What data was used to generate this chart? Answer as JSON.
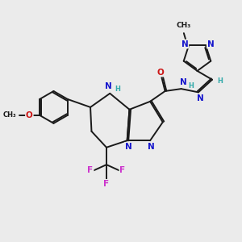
{
  "background_color": "#ebebeb",
  "fig_size": [
    3.0,
    3.0
  ],
  "dpi": 100,
  "bond_color": "#1a1a1a",
  "bond_lw": 1.4,
  "atom_colors": {
    "N": "#1515cc",
    "O": "#cc1515",
    "F": "#cc33cc",
    "H": "#33aaaa",
    "C": "#1a1a1a"
  },
  "font_size_atom": 7.5,
  "font_size_small": 6.0
}
